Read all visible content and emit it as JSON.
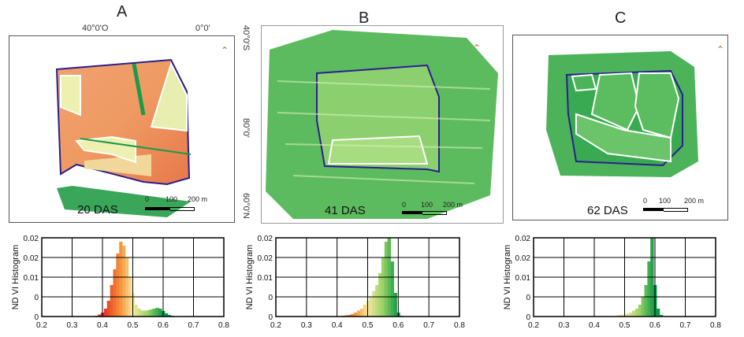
{
  "panels": [
    {
      "letter": "A",
      "das": "20 DAS"
    },
    {
      "letter": "B",
      "das": "41 DAS"
    },
    {
      "letter": "C",
      "das": "62 DAS"
    }
  ],
  "coords": {
    "top_left": "40°0'O",
    "top_right": "0°0'",
    "right_top": "40°0'S",
    "right_mid": "80°0'",
    "right_bottom": "60°0'N"
  },
  "scalebar": {
    "zero": "0",
    "mid": "100",
    "end": "200 m"
  },
  "north_arrow_icon": "north-arrow-icon",
  "colors": {
    "low": "#e8312a",
    "mid": "#f7e79a",
    "high": "#0c9a4a",
    "boundary": "#2a1f8f",
    "exclusion": "#f4f4ee"
  },
  "chart_data": [
    {
      "type": "bar",
      "panel": "A",
      "ylabel": "ND VI  Histogram",
      "xlim": [
        0.2,
        0.8
      ],
      "ylim": [
        0,
        0.02
      ],
      "xticks": [
        "0.2",
        "0.3",
        "0.4",
        "0.5",
        "0.6",
        "0.7",
        "0.8"
      ],
      "yticks": [
        "0.02",
        "0.02",
        "0.01",
        "0",
        "0"
      ],
      "grid": true,
      "x": [
        0.38,
        0.39,
        0.4,
        0.41,
        0.42,
        0.43,
        0.44,
        0.45,
        0.46,
        0.47,
        0.48,
        0.49,
        0.5,
        0.51,
        0.52,
        0.53,
        0.54,
        0.55,
        0.56,
        0.57,
        0.58,
        0.59,
        0.6,
        0.61,
        0.62,
        0.63
      ],
      "values": [
        0.0002,
        0.0005,
        0.001,
        0.002,
        0.004,
        0.008,
        0.012,
        0.016,
        0.019,
        0.018,
        0.015,
        0.01,
        0.006,
        0.003,
        0.002,
        0.0015,
        0.0015,
        0.0016,
        0.0018,
        0.002,
        0.0022,
        0.002,
        0.0014,
        0.0008,
        0.0004,
        0.0002
      ]
    },
    {
      "type": "bar",
      "panel": "B",
      "ylabel": "ND VI  Histogram",
      "xlim": [
        0.2,
        0.8
      ],
      "ylim": [
        0,
        0.02
      ],
      "xticks": [
        "0.2",
        "0.3",
        "0.4",
        "0.5",
        "0.6",
        "0.7",
        "0.8"
      ],
      "yticks": [
        "0.02",
        "0.02",
        "0.01",
        "0",
        "0"
      ],
      "grid": true,
      "x": [
        0.42,
        0.43,
        0.44,
        0.45,
        0.46,
        0.47,
        0.48,
        0.49,
        0.5,
        0.51,
        0.52,
        0.53,
        0.54,
        0.55,
        0.56,
        0.57,
        0.58,
        0.59,
        0.6,
        0.61
      ],
      "values": [
        0.0002,
        0.0003,
        0.0004,
        0.0006,
        0.001,
        0.0015,
        0.002,
        0.003,
        0.004,
        0.005,
        0.0065,
        0.008,
        0.011,
        0.015,
        0.019,
        0.02,
        0.014,
        0.006,
        0.001,
        0.0002
      ]
    },
    {
      "type": "bar",
      "panel": "C",
      "ylabel": "ND VI  Histogram",
      "xlim": [
        0.2,
        0.8
      ],
      "ylim": [
        0,
        0.02
      ],
      "xticks": [
        "0.2",
        "0.3",
        "0.4",
        "0.5",
        "0.6",
        "0.7",
        "0.8"
      ],
      "yticks": [
        "0.02",
        "0.02",
        "0.01",
        "0",
        "0"
      ],
      "grid": true,
      "x": [
        0.48,
        0.49,
        0.5,
        0.51,
        0.52,
        0.53,
        0.54,
        0.55,
        0.56,
        0.57,
        0.58,
        0.59,
        0.6,
        0.61,
        0.62
      ],
      "values": [
        0.0003,
        0.0004,
        0.0006,
        0.0008,
        0.001,
        0.0015,
        0.002,
        0.003,
        0.005,
        0.008,
        0.014,
        0.02,
        0.008,
        0.002,
        0.0004
      ]
    }
  ]
}
